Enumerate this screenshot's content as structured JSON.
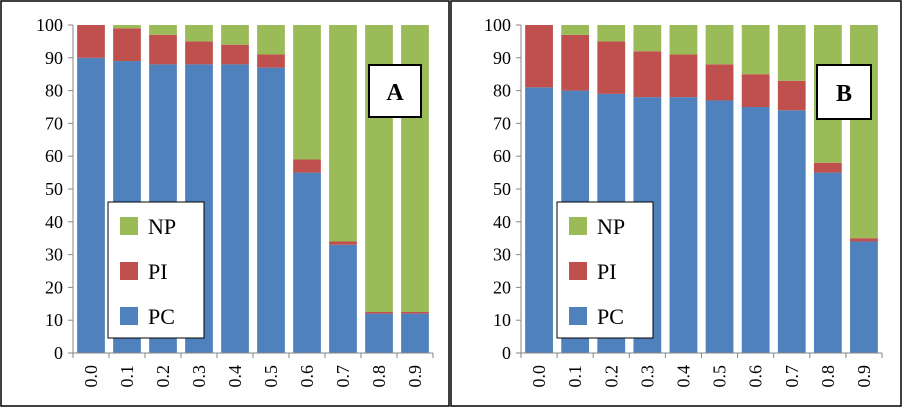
{
  "chart_data": [
    {
      "type": "bar",
      "stacked": true,
      "panel_label": "A",
      "categories": [
        "0.0",
        "0.1",
        "0.2",
        "0.3",
        "0.4",
        "0.5",
        "0.6",
        "0.7",
        "0.8",
        "0.9"
      ],
      "series": [
        {
          "name": "PC",
          "color": "#4f81bd",
          "values": [
            90,
            89,
            88,
            88,
            88,
            87,
            55,
            33,
            12,
            12
          ]
        },
        {
          "name": "PI",
          "color": "#c0504d",
          "values": [
            10,
            10,
            9,
            7,
            6,
            4,
            4,
            1,
            0.5,
            0.5
          ]
        },
        {
          "name": "NP",
          "color": "#9bbb59",
          "values": [
            0,
            1,
            3,
            5,
            6,
            9,
            41,
            66,
            87.5,
            87.5
          ]
        }
      ],
      "ylim": [
        0,
        100
      ],
      "yticks": [
        "0",
        "10",
        "20",
        "30",
        "40",
        "50",
        "60",
        "70",
        "80",
        "90",
        "100"
      ],
      "legend_order": [
        "NP",
        "PI",
        "PC"
      ],
      "legend_position": "lower-left",
      "grid": false
    },
    {
      "type": "bar",
      "stacked": true,
      "panel_label": "B",
      "categories": [
        "0.0",
        "0.1",
        "0.2",
        "0.3",
        "0.4",
        "0.5",
        "0.6",
        "0.7",
        "0.8",
        "0.9"
      ],
      "series": [
        {
          "name": "PC",
          "color": "#4f81bd",
          "values": [
            81,
            80,
            79,
            78,
            78,
            77,
            75,
            74,
            55,
            34
          ]
        },
        {
          "name": "PI",
          "color": "#c0504d",
          "values": [
            19,
            17,
            16,
            14,
            13,
            11,
            10,
            9,
            3,
            1
          ]
        },
        {
          "name": "NP",
          "color": "#9bbb59",
          "values": [
            0,
            3,
            5,
            8,
            9,
            12,
            15,
            17,
            42,
            65
          ]
        }
      ],
      "ylim": [
        0,
        100
      ],
      "yticks": [
        "0",
        "10",
        "20",
        "30",
        "40",
        "50",
        "60",
        "70",
        "80",
        "90",
        "100"
      ],
      "legend_order": [
        "NP",
        "PI",
        "PC"
      ],
      "legend_position": "lower-left",
      "grid": false
    }
  ]
}
